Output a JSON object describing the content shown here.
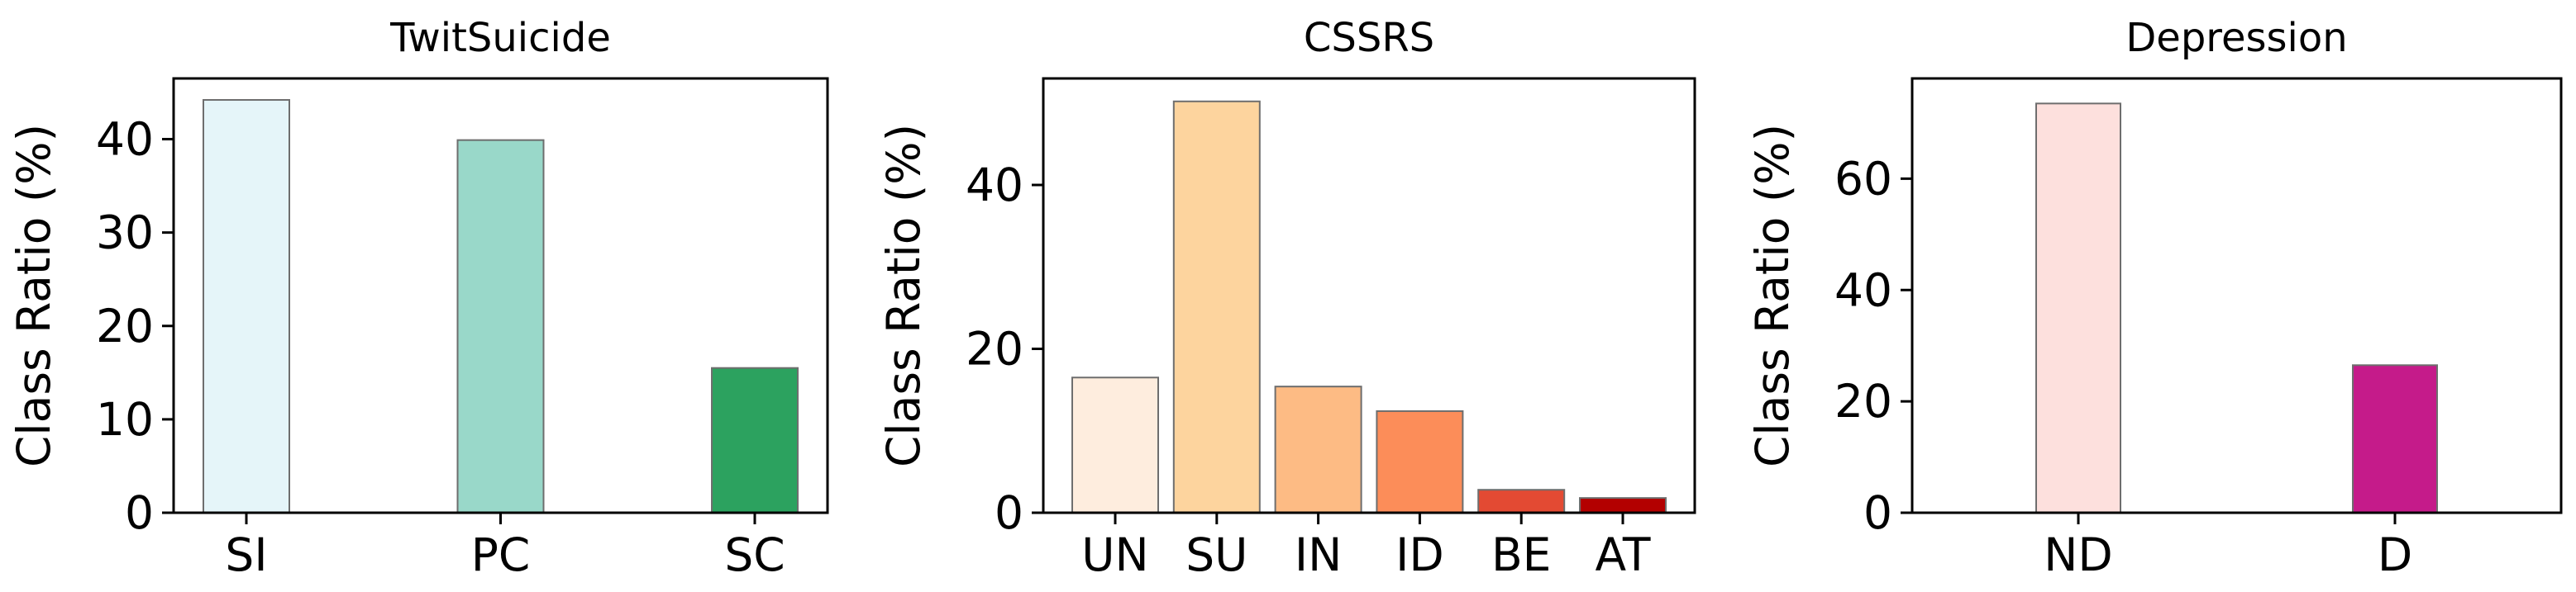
{
  "chart_data": [
    {
      "type": "bar",
      "title": "TwitSuicide",
      "xlabel": "",
      "ylabel": "Class Ratio (%)",
      "categories": [
        "SI",
        "PC",
        "SC"
      ],
      "values": [
        44.2,
        39.9,
        15.5
      ],
      "colors": [
        "#e5f5f9",
        "#99d8c9",
        "#2ca25f"
      ],
      "ylim": [
        0,
        46.5
      ],
      "yticks": [
        "0",
        "10",
        "20",
        "30",
        "40"
      ],
      "grid": false,
      "legend": "none"
    },
    {
      "type": "bar",
      "title": "CSSRS",
      "xlabel": "",
      "ylabel": "Class Ratio (%)",
      "categories": [
        "UN",
        "SU",
        "IN",
        "ID",
        "BE",
        "AT"
      ],
      "values": [
        16.5,
        50.2,
        15.4,
        12.4,
        2.8,
        1.8
      ],
      "colors": [
        "#feedde",
        "#fdd49e",
        "#fdbb84",
        "#fc8d59",
        "#e34a33",
        "#b30000"
      ],
      "ylim": [
        0,
        53
      ],
      "yticks": [
        "0",
        "20",
        "40"
      ],
      "grid": false,
      "legend": "none"
    },
    {
      "type": "bar",
      "title": "Depression",
      "xlabel": "",
      "ylabel": "Class Ratio (%)",
      "categories": [
        "ND",
        "D"
      ],
      "values": [
        73.5,
        26.5
      ],
      "colors": [
        "#fde0dd",
        "#c51b8a"
      ],
      "ylim": [
        0,
        78
      ],
      "yticks": [
        "0",
        "20",
        "40",
        "60"
      ],
      "grid": false,
      "legend": "none"
    }
  ]
}
